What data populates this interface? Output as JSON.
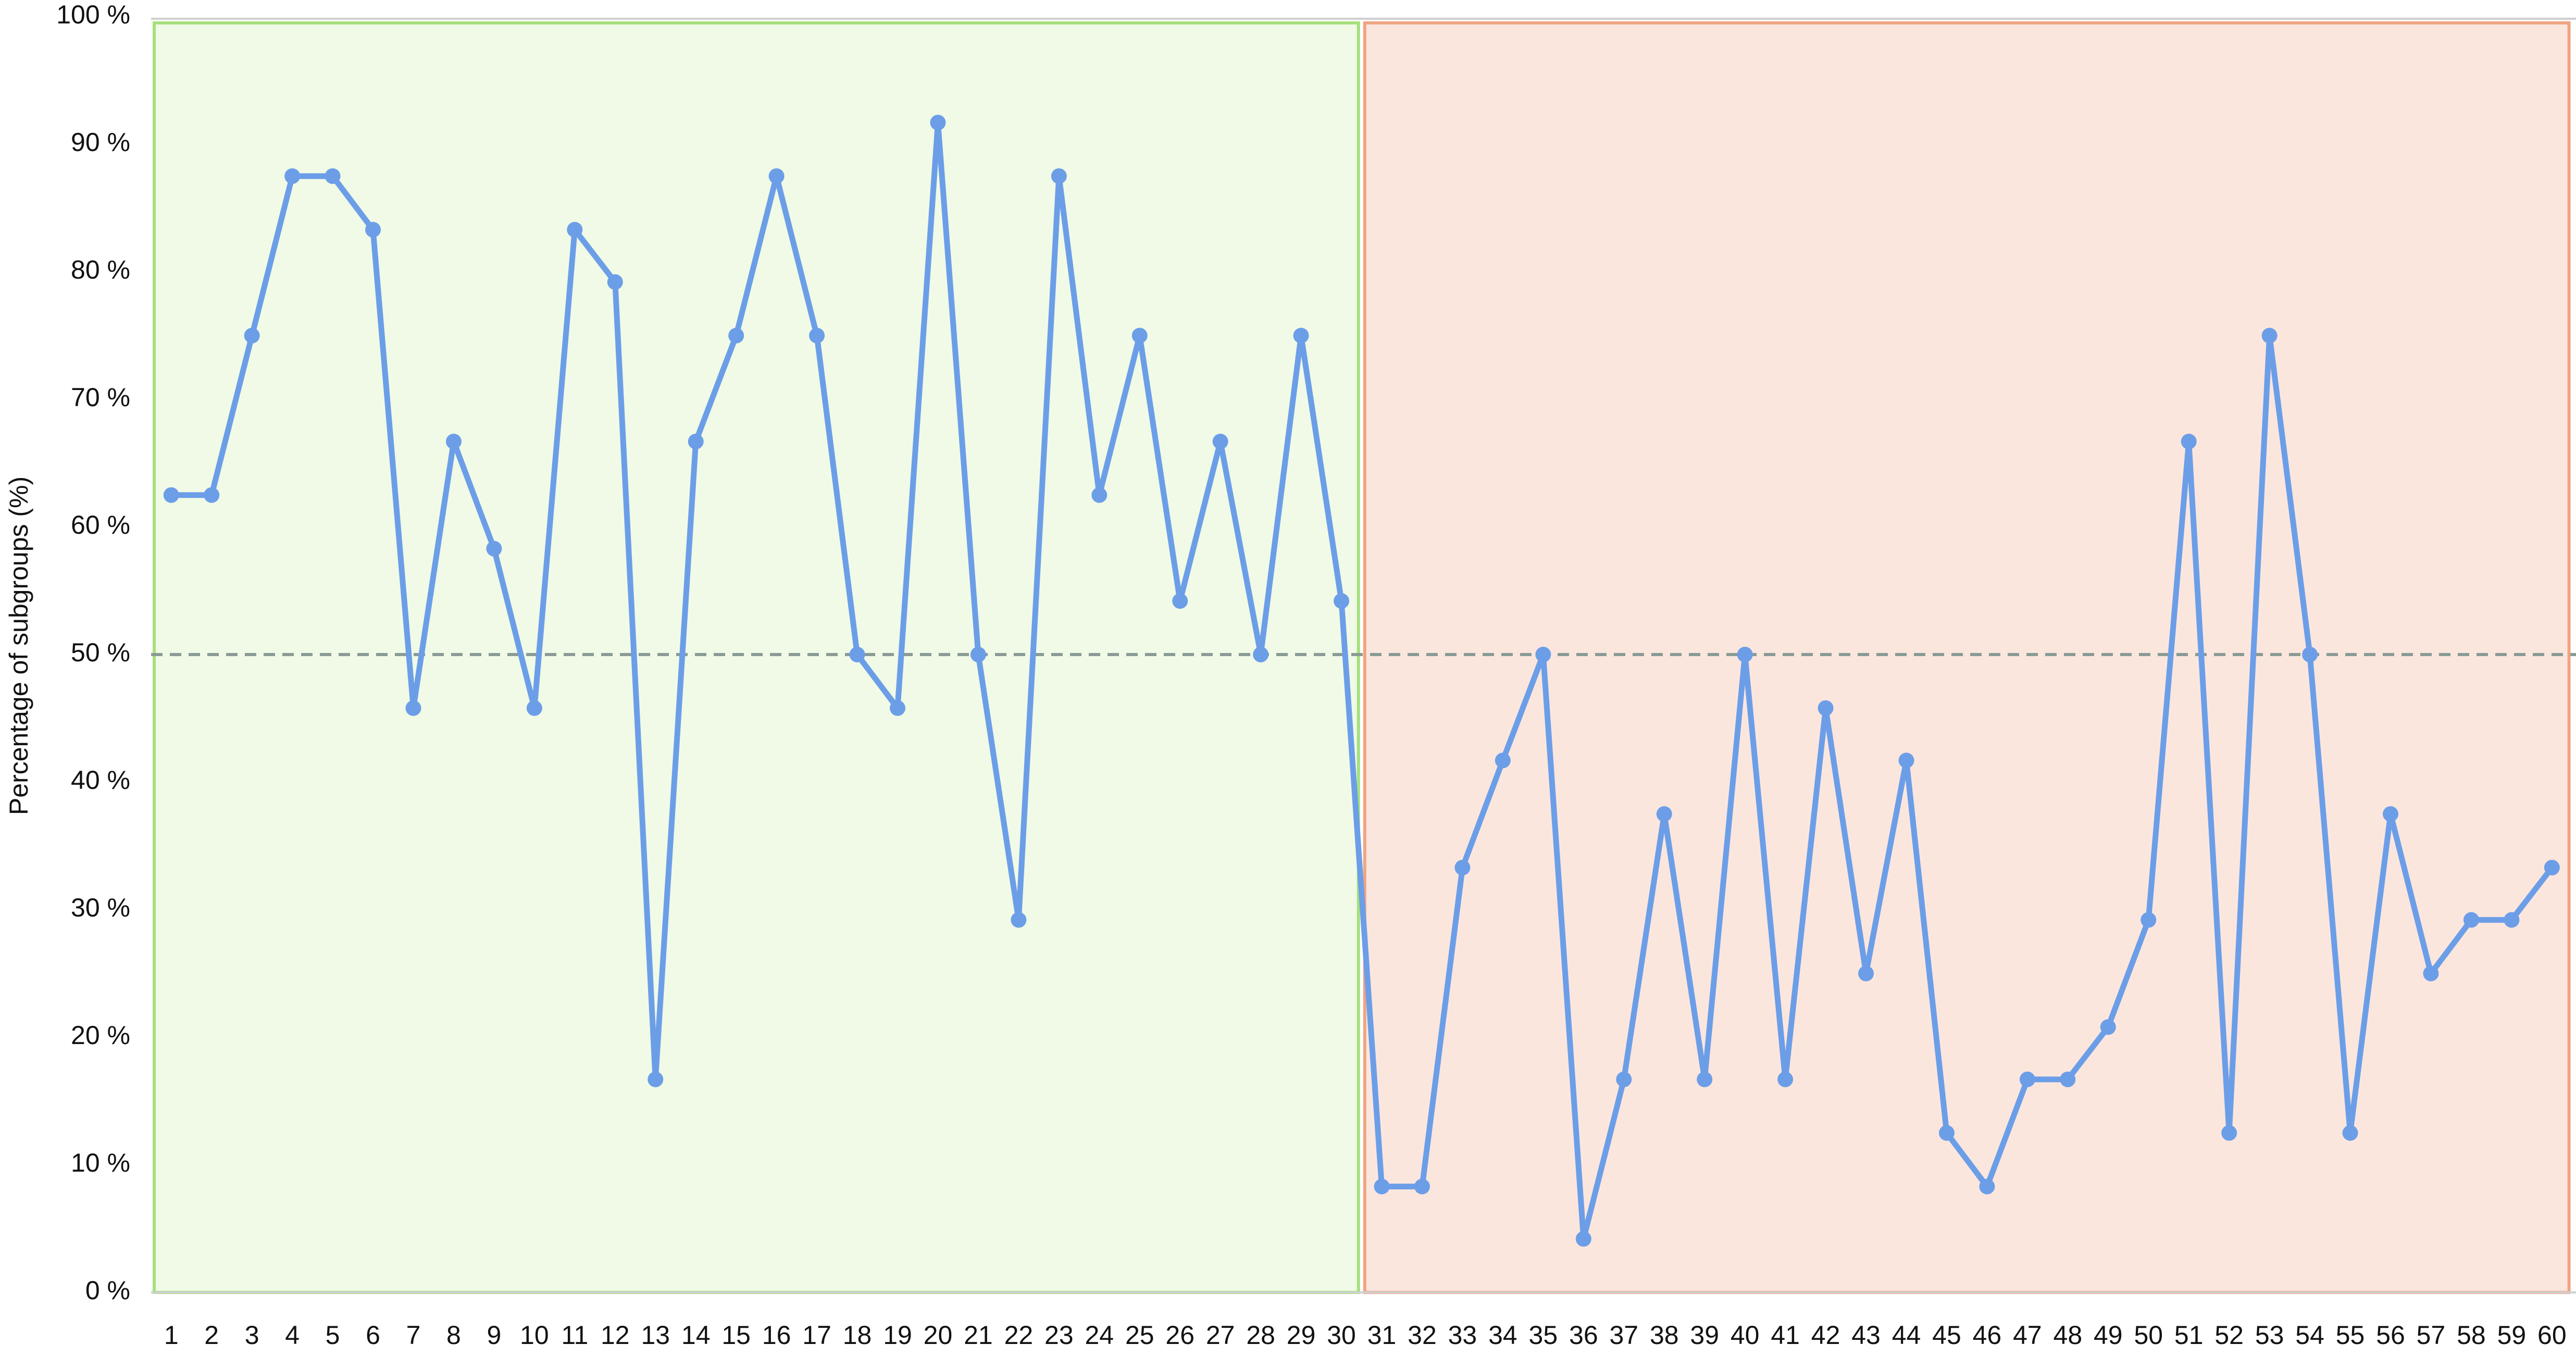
{
  "chart_data": {
    "type": "line",
    "y_label": "Percentage of subgroups (%)",
    "categories": [
      "1",
      "2",
      "3",
      "4",
      "5",
      "6",
      "7",
      "8",
      "9",
      "10",
      "11",
      "12",
      "13",
      "14",
      "15",
      "16",
      "17",
      "18",
      "19",
      "20",
      "21",
      "22",
      "23",
      "24",
      "25",
      "26",
      "27",
      "28",
      "29",
      "30",
      "31",
      "32",
      "33",
      "34",
      "35",
      "36",
      "37",
      "38",
      "39",
      "40",
      "41",
      "42",
      "43",
      "44",
      "45",
      "46",
      "47",
      "48",
      "49",
      "50",
      "51",
      "52",
      "53",
      "54",
      "55",
      "56",
      "57",
      "58",
      "59",
      "60"
    ],
    "series": [
      {
        "color": "#6c9ee8",
        "values": [
          62.5,
          62.5,
          75,
          87.5,
          87.5,
          83.3,
          45.8,
          66.7,
          58.3,
          45.8,
          83.3,
          79.2,
          16.7,
          66.7,
          75,
          87.5,
          75,
          50,
          45.8,
          91.7,
          50,
          29.2,
          87.5,
          62.5,
          75,
          54.2,
          66.7,
          50,
          75,
          54.2,
          8.3,
          8.3,
          33.3,
          41.7,
          50,
          4.2,
          16.7,
          37.5,
          16.7,
          50,
          16.7,
          45.8,
          25,
          41.7,
          12.5,
          8.3,
          16.7,
          16.7,
          20.8,
          29.2,
          66.7,
          12.5,
          75,
          50,
          12.5,
          37.5,
          25,
          29.2,
          29.2,
          33.3
        ]
      }
    ],
    "ylim": [
      0,
      100
    ],
    "yticks": [
      {
        "value": 0,
        "label": "0 %"
      },
      {
        "value": 10,
        "label": "10 %"
      },
      {
        "value": 20,
        "label": "20 %"
      },
      {
        "value": 30,
        "label": "30 %"
      },
      {
        "value": 40,
        "label": "40 %"
      },
      {
        "value": 50,
        "label": "50 %"
      },
      {
        "value": 60,
        "label": "60 %"
      },
      {
        "value": 70,
        "label": "70 %"
      },
      {
        "value": 80,
        "label": "80 %"
      },
      {
        "value": 90,
        "label": "90 %"
      },
      {
        "value": 100,
        "label": "100 %"
      }
    ],
    "reference_line": {
      "value": 50,
      "color": "#8a9a94"
    },
    "regions": [
      {
        "from": "1",
        "to": "30",
        "fill": "#f0fae6",
        "stroke": "#a6e07e"
      },
      {
        "from": "31",
        "to": "60",
        "fill": "#fbe6de",
        "stroke": "#f0a482"
      }
    ]
  }
}
